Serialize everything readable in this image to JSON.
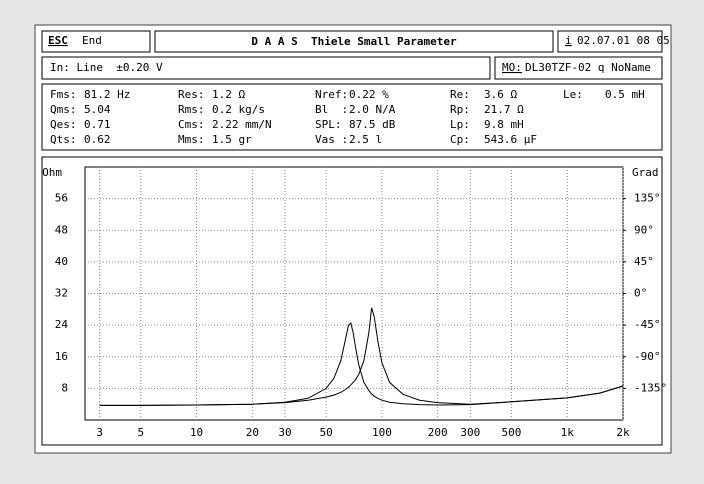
{
  "header": {
    "esc": "ESC",
    "end": "End",
    "title": "D A A S  Thiele Small Parameter",
    "info": "i",
    "date": "02.07.01 08 05"
  },
  "input": {
    "text": "In: Line  ±0.20 V",
    "model_prefix": "MO:",
    "model": "DL30TZF-02 q NoName"
  },
  "params": {
    "rows": [
      [
        {
          "label": "Fms:",
          "value": "81.2 Hz"
        },
        {
          "label": "Res:",
          "value": "1.2 Ω"
        },
        {
          "label": "Nref:",
          "value": "0.22 %"
        },
        {
          "label": "Re:",
          "value": "3.6 Ω"
        },
        {
          "label": "Le:",
          "value": "0.5 mH"
        }
      ],
      [
        {
          "label": "Qms:",
          "value": "5.04"
        },
        {
          "label": "Rms:",
          "value": "0.2 kg/s"
        },
        {
          "label": "Bl  :",
          "value": "2.0 N/A"
        },
        {
          "label": "Rp:",
          "value": "21.7 Ω"
        }
      ],
      [
        {
          "label": "Qes:",
          "value": "0.71"
        },
        {
          "label": "Cms:",
          "value": "2.22 mm/N"
        },
        {
          "label": "SPL:",
          "value": "87.5 dB"
        },
        {
          "label": "Lp:",
          "value": "9.8 mH"
        }
      ],
      [
        {
          "label": "Qts:",
          "value": "0.62"
        },
        {
          "label": "Mms:",
          "value": "1.5 gr"
        },
        {
          "label": "Vas :",
          "value": "2.5 l"
        },
        {
          "label": "Cp:",
          "value": "543.6 µF"
        }
      ]
    ]
  },
  "chart_data": {
    "type": "line",
    "y_label": "Ohm",
    "y2_label": "Grad",
    "log_x": true,
    "grid": true,
    "x": [
      3,
      5,
      10,
      20,
      30,
      40,
      50,
      55,
      60,
      63,
      66,
      68,
      70,
      72,
      75,
      80,
      85,
      88,
      91,
      95,
      100,
      110,
      130,
      160,
      200,
      300,
      500,
      1000,
      1500,
      2000
    ],
    "series": [
      {
        "color": "#000000",
        "values": [
          3.7,
          3.7,
          3.8,
          4.0,
          4.5,
          5.5,
          8,
          10.5,
          15,
          19.5,
          24,
          24.5,
          22,
          18.5,
          14,
          9.5,
          7.5,
          6.6,
          6,
          5.5,
          5,
          4.5,
          4.1,
          3.9,
          3.8,
          3.9,
          4.6,
          5.6,
          6.8,
          8.6
        ]
      },
      {
        "color": "#000000",
        "values": [
          3.7,
          3.7,
          3.8,
          4.0,
          4.4,
          5,
          5.8,
          6.3,
          7,
          7.6,
          8.3,
          8.9,
          9.5,
          10.2,
          11.5,
          15,
          22,
          28.4,
          26,
          20,
          14.5,
          9.5,
          6.5,
          5,
          4.4,
          4,
          4.6,
          5.6,
          6.8,
          8.6
        ]
      }
    ],
    "xlim": [
      2.5,
      2000
    ],
    "xticks": [
      3,
      5,
      10,
      20,
      30,
      50,
      100,
      200,
      300,
      500,
      {
        "value": 1000,
        "label": "1k"
      },
      {
        "value": 2000,
        "label": "2k"
      }
    ],
    "ylim": [
      0,
      64
    ],
    "yticks": [
      8,
      16,
      24,
      32,
      40,
      48,
      56
    ],
    "y2lim": [
      -180,
      180
    ],
    "y2ticks": [
      {
        "value": -135,
        "label": "-135°"
      },
      {
        "value": -90,
        "label": "-90°"
      },
      {
        "value": -45,
        "label": "-45°"
      },
      {
        "value": 0,
        "label": "0°"
      },
      {
        "value": 45,
        "label": "45°"
      },
      {
        "value": 90,
        "label": "90°"
      },
      {
        "value": 135,
        "label": "135°"
      }
    ]
  }
}
